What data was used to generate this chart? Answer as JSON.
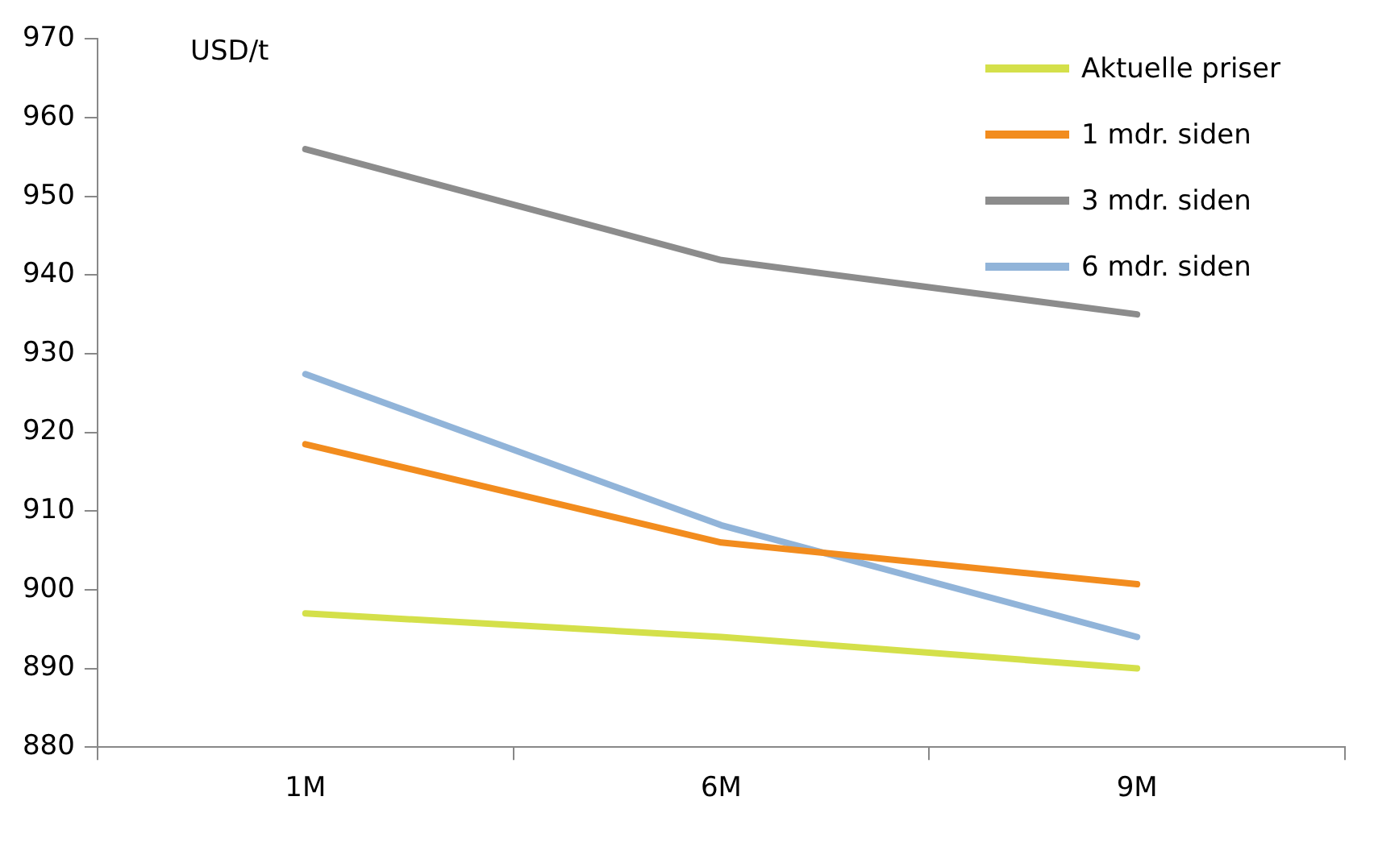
{
  "chart_data": {
    "type": "line",
    "ylabel": "USD/t",
    "categories": [
      "1M",
      "6M",
      "9M"
    ],
    "series": [
      {
        "name": "Aktuelle priser",
        "color": "#d4e04a",
        "values": [
          897,
          894,
          890
        ]
      },
      {
        "name": "1 mdr. siden",
        "color": "#f28c1e",
        "values": [
          918.5,
          906,
          900.7
        ]
      },
      {
        "name": "3 mdr. siden",
        "color": "#8c8c8c",
        "values": [
          956,
          941.9,
          935
        ]
      },
      {
        "name": "6 mdr. siden",
        "color": "#91b4d9",
        "values": [
          927.4,
          908.2,
          894
        ]
      }
    ],
    "ylim": [
      880,
      970
    ],
    "yticks": [
      880,
      890,
      900,
      910,
      920,
      930,
      940,
      950,
      960,
      970
    ],
    "grid": false,
    "legend": "top right",
    "marker": "none",
    "line_style": "solid"
  }
}
